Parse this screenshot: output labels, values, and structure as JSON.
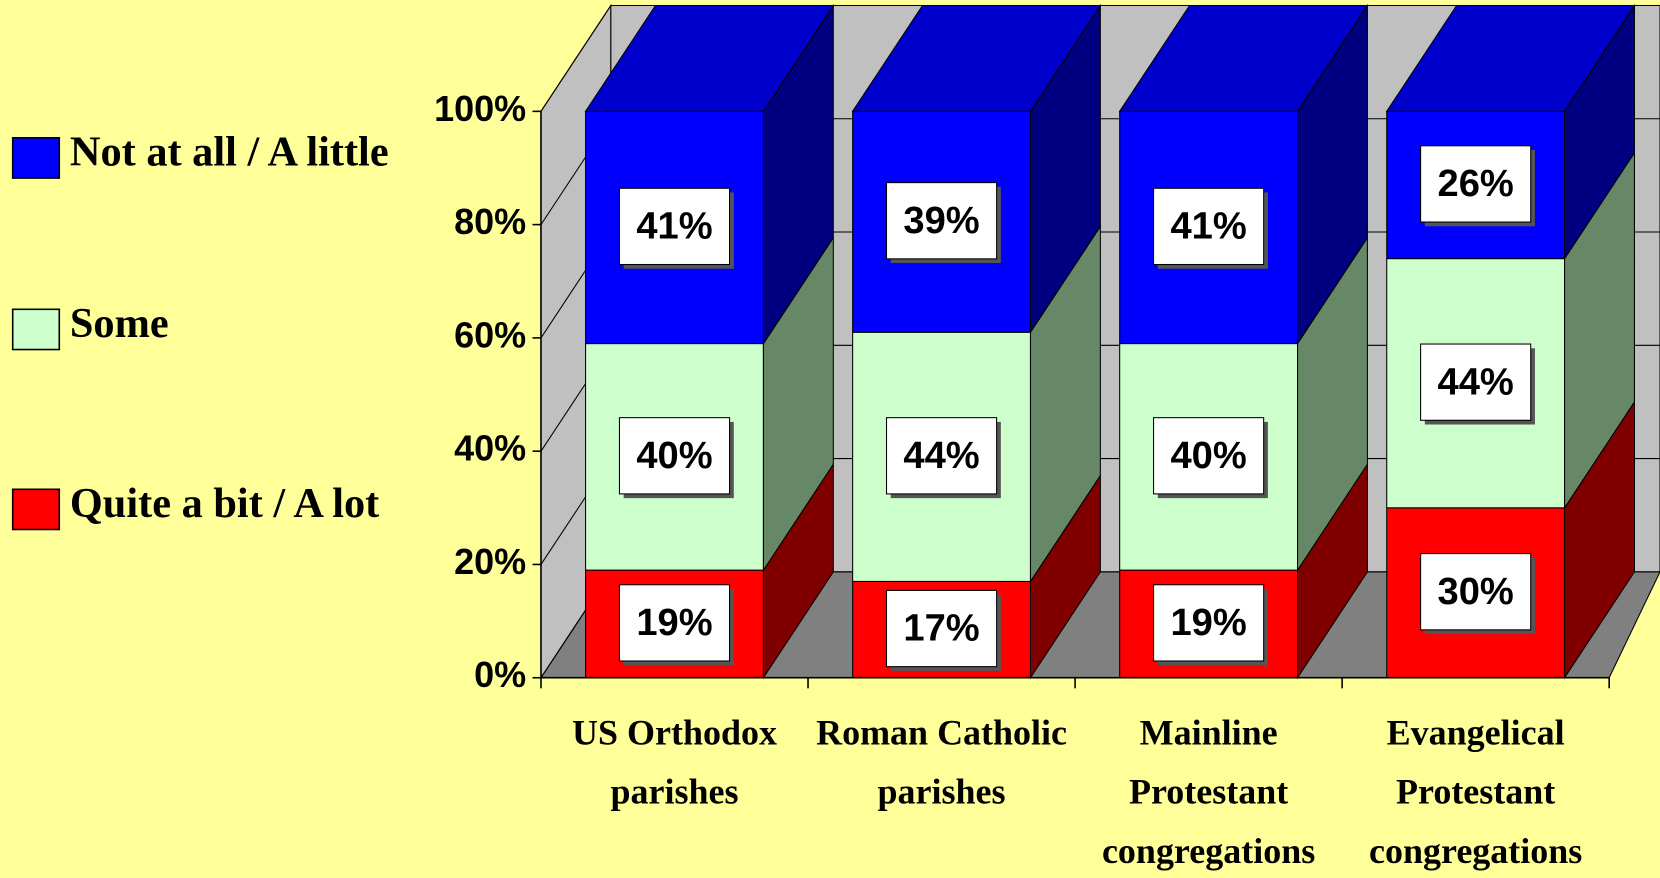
{
  "chart_data": {
    "type": "stacked-bar-3d",
    "categories": [
      "US Orthodox parishes",
      "Roman Catholic parishes",
      "Mainline Protestant congregations",
      "Evangelical Protestant congregations"
    ],
    "series": [
      {
        "name": "Quite a bit / A lot",
        "color": "#ff0000",
        "side": "#800000",
        "values": [
          19,
          17,
          19,
          30
        ],
        "value_labels": [
          "19%",
          "17%",
          "19%",
          "30%"
        ]
      },
      {
        "name": "Some",
        "color": "#ccffcc",
        "side": "#668866",
        "values": [
          40,
          44,
          40,
          44
        ],
        "value_labels": [
          "40%",
          "44%",
          "40%",
          "44%"
        ]
      },
      {
        "name": "Not at all / A little",
        "color": "#0000ff",
        "side": "#000080",
        "values": [
          41,
          39,
          41,
          26
        ],
        "value_labels": [
          "41%",
          "39%",
          "41%",
          "26%"
        ]
      }
    ],
    "ylim": [
      0,
      100
    ],
    "yticks": [
      {
        "value": 0,
        "label": "0%"
      },
      {
        "value": 20,
        "label": "20%"
      },
      {
        "value": 40,
        "label": "40%"
      },
      {
        "value": 60,
        "label": "60%"
      },
      {
        "value": 80,
        "label": "80%"
      },
      {
        "value": 100,
        "label": "100%"
      }
    ],
    "grid": true
  }
}
